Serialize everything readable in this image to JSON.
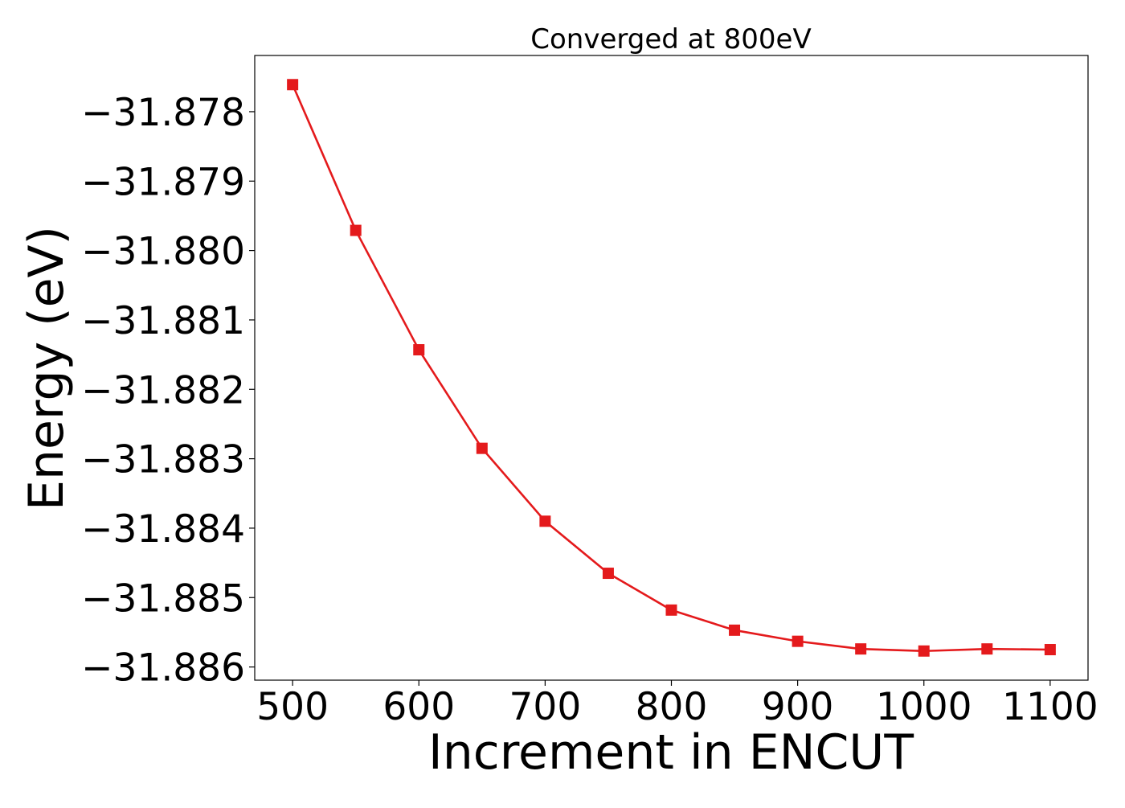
{
  "chart_data": {
    "type": "line",
    "title": "Converged at 800eV",
    "xlabel": "Increment in ENCUT",
    "ylabel": "Energy (eV)",
    "x": [
      500,
      550,
      600,
      650,
      700,
      750,
      800,
      850,
      900,
      950,
      1000,
      1050,
      1100
    ],
    "series": [
      {
        "values": [
          -31.87761,
          -31.87971,
          -31.88143,
          -31.88285,
          -31.8839,
          -31.88465,
          -31.88518,
          -31.88547,
          -31.88563,
          -31.88574,
          -31.88577,
          -31.88574,
          -31.88575
        ],
        "color": "#e41a1c",
        "marker": "square"
      }
    ],
    "xticks": [
      500,
      600,
      700,
      800,
      900,
      1000,
      1100
    ],
    "xtick_labels": [
      "500",
      "600",
      "700",
      "800",
      "900",
      "1000",
      "1100"
    ],
    "yticks": [
      -31.878,
      -31.879,
      -31.88,
      -31.881,
      -31.882,
      -31.883,
      -31.884,
      -31.885,
      -31.886
    ],
    "ytick_labels": [
      "−31.878",
      "−31.879",
      "−31.880",
      "−31.881",
      "−31.882",
      "−31.883",
      "−31.884",
      "−31.885",
      "−31.886"
    ],
    "xlim": [
      470,
      1130
    ],
    "ylim": [
      -31.88619,
      -31.87719
    ],
    "grid": false,
    "legend": "none"
  }
}
